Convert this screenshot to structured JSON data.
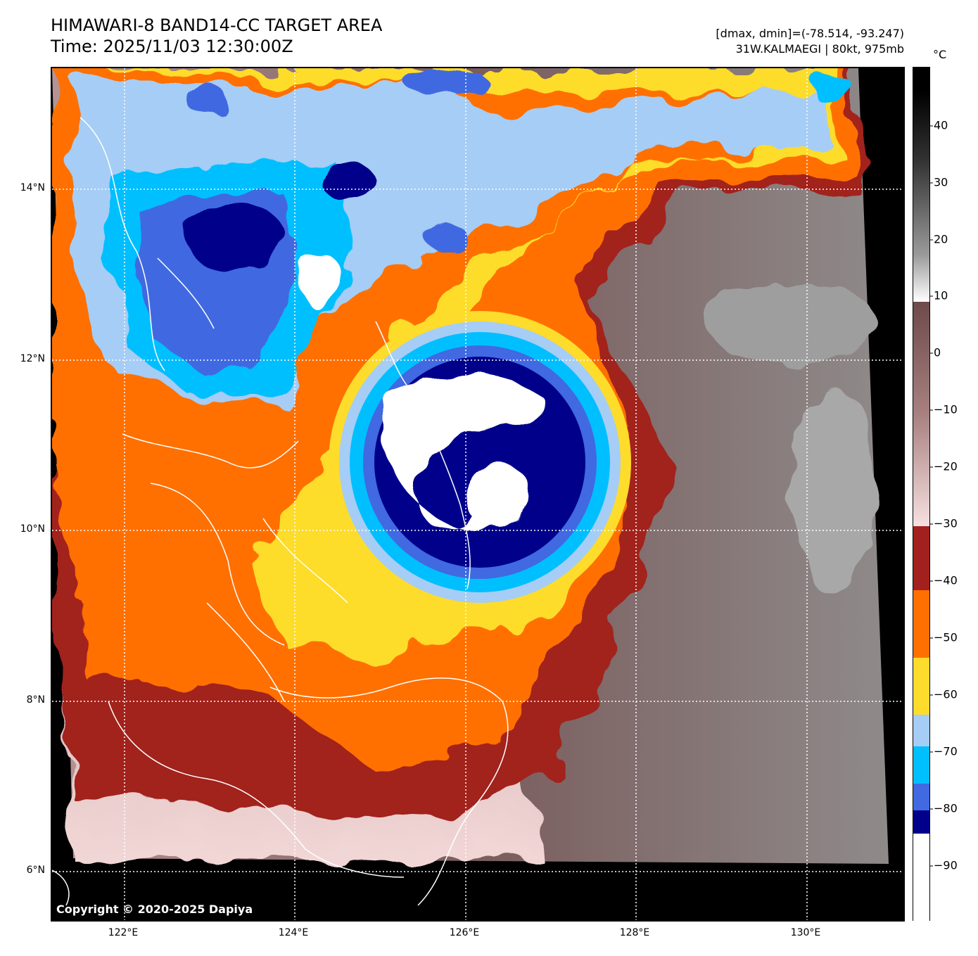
{
  "header": {
    "title_line1": "HIMAWARI-8 BAND14-CC TARGET AREA",
    "title_line2": "Time: 2025/11/03 12:30:00Z",
    "info_line1": "[dmax, dmin]=(-78.514, -93.247)",
    "info_line2": "31W.KALMAEGI | 80kt, 975mb"
  },
  "map": {
    "copyright": "Copyright © 2020-2025 Dapiya",
    "lat_labels": [
      "14°N",
      "12°N",
      "10°N",
      "8°N",
      "6°N"
    ],
    "lon_labels": [
      "122°E",
      "124°E",
      "126°E",
      "128°E",
      "130°E"
    ],
    "grid_line_color": "#ffffff",
    "coastline_color": "#ffffff"
  },
  "colorbar": {
    "unit": "°C",
    "ticks": [
      "40",
      "30",
      "20",
      "10",
      "0",
      "−10",
      "−20",
      "−30",
      "−40",
      "−50",
      "−60",
      "−70",
      "−80",
      "−90"
    ],
    "scale": [
      {
        "range": "-100 to -85",
        "color": "#ffffff"
      },
      {
        "range": "-85 to -81",
        "color": "#00008b"
      },
      {
        "range": "-81 to -76",
        "color": "#4169e1"
      },
      {
        "range": "-76 to -70",
        "color": "#00bfff"
      },
      {
        "range": "-70 to -64",
        "color": "#a6cdf5"
      },
      {
        "range": "-64 to -57",
        "color": "#fddc2b"
      },
      {
        "range": "-57 to -46",
        "color": "#ff7000"
      },
      {
        "range": "-46 to -31",
        "color": "#a2211f"
      },
      {
        "range": "-31 to 9",
        "color": "#f7e0e0 → #6e4a4a"
      },
      {
        "range": "9 to 50",
        "color": "#ffffff → #000000"
      }
    ]
  }
}
